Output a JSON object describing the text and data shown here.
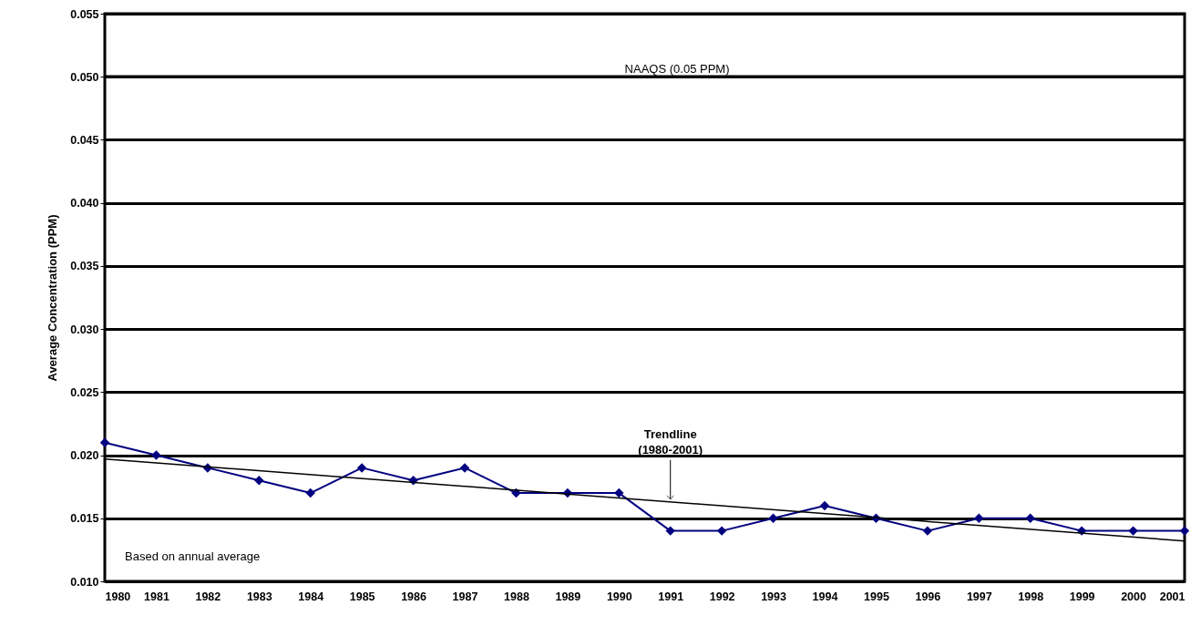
{
  "chart_data": {
    "type": "line",
    "ylabel": "Average Concentration (PPM)",
    "x": [
      1980,
      1981,
      1982,
      1983,
      1984,
      1985,
      1986,
      1987,
      1988,
      1989,
      1990,
      1991,
      1992,
      1993,
      1994,
      1995,
      1996,
      1997,
      1998,
      1999,
      2000,
      2001
    ],
    "xlim": [
      1980,
      2001
    ],
    "xticks": [
      1980,
      1981,
      1982,
      1983,
      1984,
      1985,
      1986,
      1987,
      1988,
      1989,
      1990,
      1991,
      1992,
      1993,
      1994,
      1995,
      1996,
      1997,
      1998,
      1999,
      2000,
      2001
    ],
    "series": [
      {
        "color": "#000080",
        "marker": "diamond",
        "values": [
          0.021,
          0.02,
          0.019,
          0.018,
          0.017,
          0.019,
          0.018,
          0.019,
          0.017,
          0.017,
          0.017,
          0.014,
          0.014,
          0.015,
          0.016,
          0.015,
          0.014,
          0.015,
          0.015,
          0.014,
          0.014,
          0.014
        ]
      },
      {
        "type": "line",
        "color": "#000000",
        "marker": "none",
        "x": [
          1980,
          2001
        ],
        "values": [
          0.0197,
          0.0132
        ]
      }
    ],
    "ylim": [
      0.01,
      0.055
    ],
    "yticks": [
      {
        "value": 0.01,
        "label": "0.010"
      },
      {
        "value": 0.015,
        "label": "0.015"
      },
      {
        "value": 0.02,
        "label": "0.020"
      },
      {
        "value": 0.025,
        "label": "0.025"
      },
      {
        "value": 0.03,
        "label": "0.030"
      },
      {
        "value": 0.035,
        "label": "0.035"
      },
      {
        "value": 0.04,
        "label": "0.040"
      },
      {
        "value": 0.045,
        "label": "0.045"
      },
      {
        "value": 0.05,
        "label": "0.050"
      },
      {
        "value": 0.055,
        "label": "0.055"
      }
    ],
    "grid": "y",
    "ref_lines": [
      {
        "axis": "y",
        "value": 0.05,
        "label": "NAAQS (0.05 PPM)",
        "color": "#000000"
      }
    ],
    "annotations": [
      "Based on annual average",
      {
        "text": "Trendline\n(1980-2001)",
        "x": 1991,
        "y": 0.0163
      }
    ]
  }
}
